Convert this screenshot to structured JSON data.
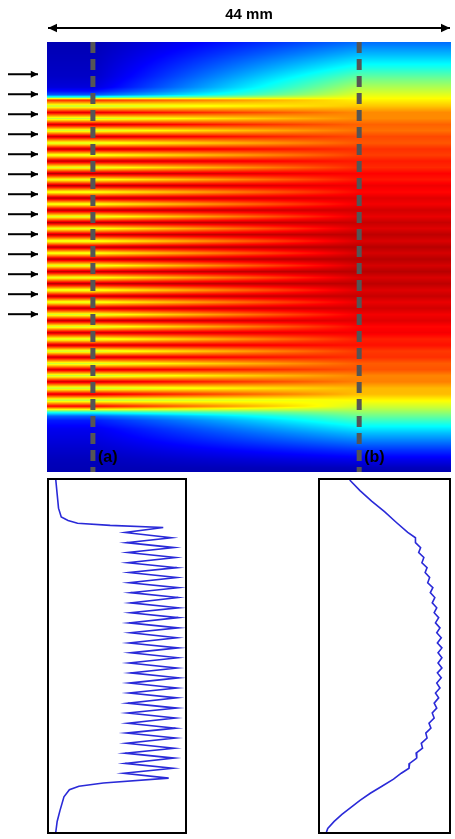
{
  "chart_data": {
    "type": "heatmap",
    "scale_bar": {
      "label": "44 mm",
      "value": 44
    },
    "xlim": [
      0,
      44
    ],
    "ylim": [
      0,
      100
    ],
    "clim": [
      0,
      100
    ],
    "tick_labels": false,
    "grid": false,
    "color": "#2a2ad8",
    "cuts": [
      {
        "label": "(a)",
        "x": 5,
        "position": [
          0,
          4,
          8,
          10.5,
          11.5,
          12.3,
          12.9,
          13.5,
          14.9,
          16.4,
          17.8,
          19.2,
          20.6,
          22.0,
          23.5,
          24.9,
          26.3,
          27.7,
          29.2,
          30.6,
          32.0,
          33.4,
          34.9,
          36.3,
          37.7,
          39.1,
          40.6,
          42.0,
          43.4,
          44.8,
          46.3,
          47.7,
          49.1,
          50.5,
          52.0,
          53.4,
          54.8,
          56.2,
          57.7,
          59.1,
          60.5,
          61.9,
          63.4,
          64.8,
          66.2,
          67.6,
          69.1,
          70.5,
          71.9,
          73.3,
          74.8,
          76.2,
          77.6,
          79.0,
          80.5,
          81.9,
          83.3,
          84.7,
          86.1,
          87.0,
          88.0,
          90,
          94,
          97,
          100
        ],
        "intensity": [
          5,
          6,
          7,
          9,
          14,
          21,
          45,
          84,
          56,
          90,
          57,
          92,
          58,
          93,
          58,
          94,
          59,
          94,
          59,
          95,
          60,
          95,
          60,
          95,
          60,
          95,
          59,
          95,
          60,
          94,
          59,
          95,
          60,
          95,
          59,
          94,
          60,
          95,
          59,
          94,
          59,
          94,
          58,
          94,
          58,
          93,
          58,
          93,
          57,
          93,
          57,
          92,
          56,
          92,
          56,
          91,
          55,
          88,
          40,
          22,
          15,
          11,
          8,
          6,
          5
        ]
      },
      {
        "label": "(b)",
        "x": 34,
        "position": [
          0,
          3,
          6,
          9,
          12,
          14.9,
          16.4,
          17.8,
          19.2,
          20.6,
          22.0,
          23.5,
          24.9,
          26.3,
          27.7,
          29.2,
          30.6,
          32.0,
          33.4,
          34.9,
          36.3,
          37.7,
          39.1,
          40.6,
          42.0,
          43.4,
          44.8,
          46.3,
          47.7,
          49.1,
          50.5,
          52.0,
          53.4,
          54.8,
          56.2,
          57.7,
          59.1,
          60.5,
          61.9,
          63.4,
          64.8,
          66.2,
          67.6,
          69.1,
          70.5,
          71.9,
          73.3,
          74.8,
          76.2,
          77.6,
          79.0,
          80.5,
          81.9,
          83.3,
          85,
          87,
          89,
          91,
          93,
          95,
          97,
          99,
          100
        ],
        "intensity": [
          23,
          31,
          40,
          50,
          59,
          68,
          74,
          74,
          78,
          76.5,
          80.5,
          79,
          83,
          81.5,
          85,
          83.5,
          87.5,
          85.5,
          89,
          87,
          90.5,
          88.5,
          92,
          89.5,
          93,
          90.5,
          94,
          91,
          94.5,
          91.5,
          94.5,
          91.5,
          94.5,
          91,
          94,
          90.5,
          93,
          89.5,
          92,
          88.5,
          90.5,
          87,
          88.5,
          84.5,
          86,
          82,
          83,
          78.5,
          79.5,
          74.5,
          75,
          69.5,
          69,
          63,
          57,
          48,
          39,
          31,
          24,
          17,
          11,
          6,
          5
        ]
      }
    ]
  }
}
